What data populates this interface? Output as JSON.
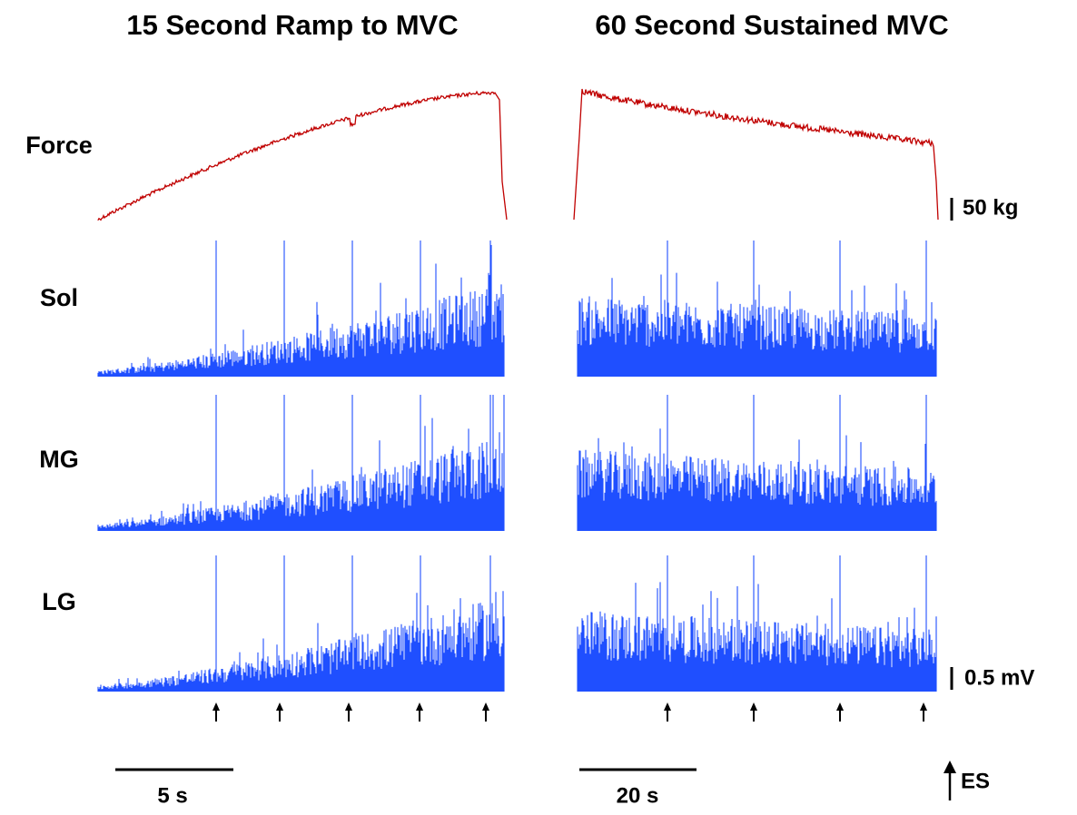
{
  "titles": [
    "15 Second Ramp to MVC",
    "60 Second Sustained MVC"
  ],
  "rows": [
    "Force",
    "Sol",
    "MG",
    "LG"
  ],
  "scale_bars": {
    "force": "50 kg",
    "emg": "0.5 mV",
    "time_ramp": "5 s",
    "time_sustained": "20 s"
  },
  "legend": {
    "stimulus": "ES"
  }
}
